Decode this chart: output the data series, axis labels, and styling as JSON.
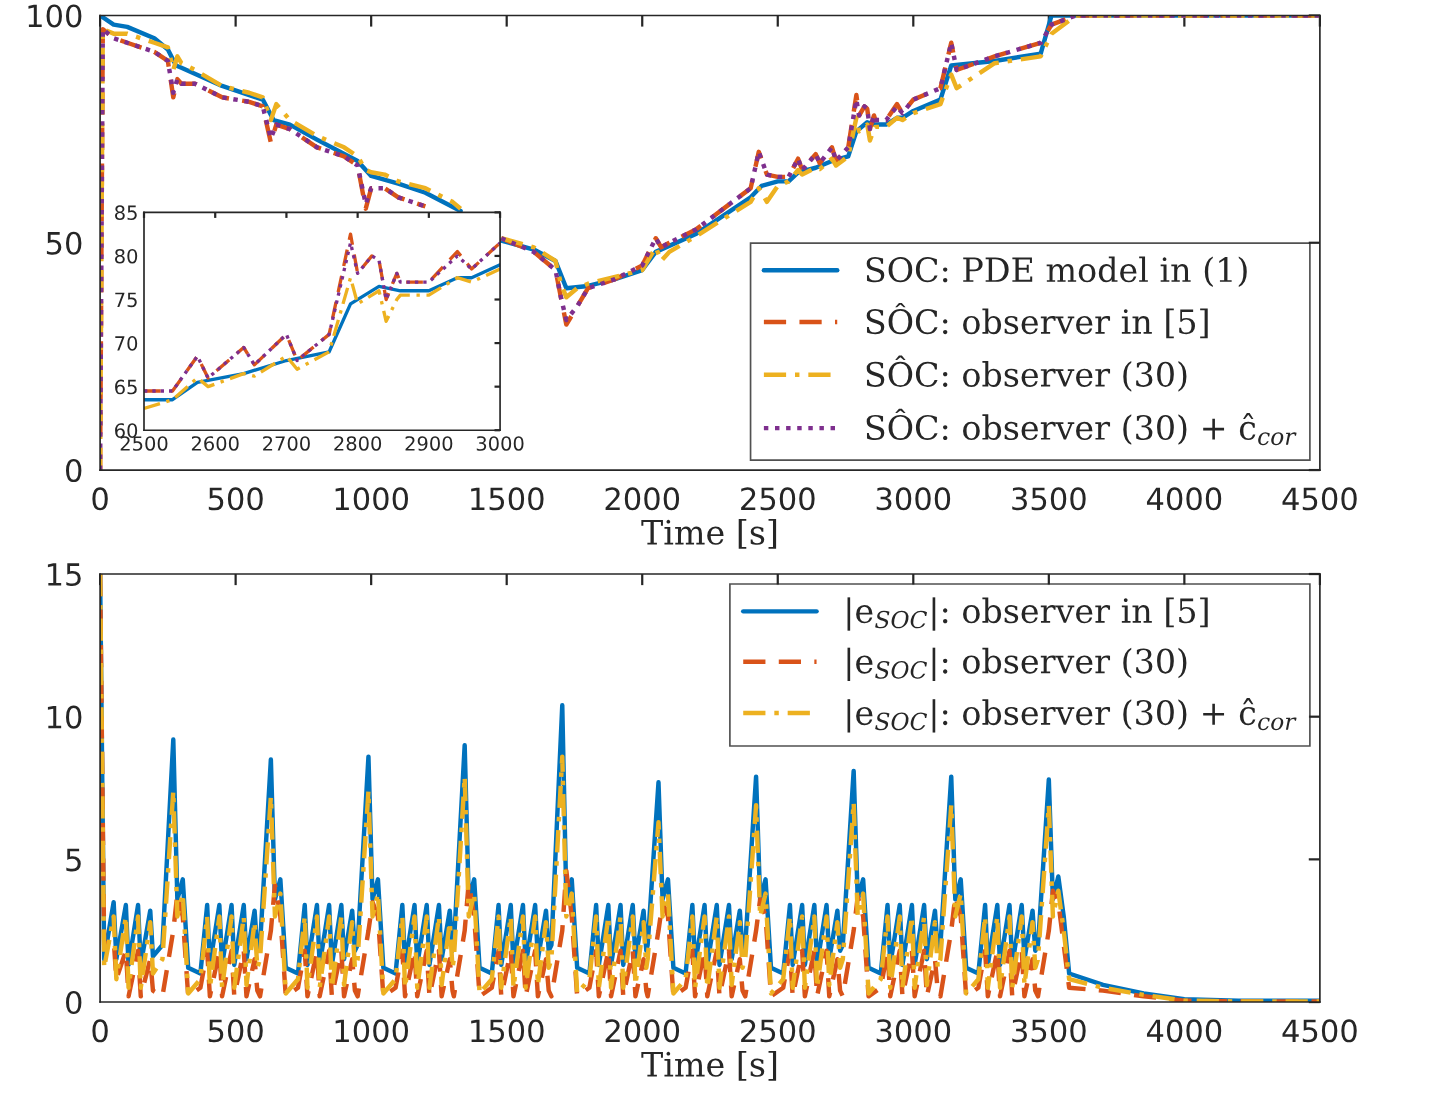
{
  "chart_data": [
    {
      "type": "line",
      "xlabel": "Time [s]",
      "xlim": [
        0,
        4500
      ],
      "ylim": [
        0,
        100
      ],
      "xticks": [
        0,
        500,
        1000,
        1500,
        2000,
        2500,
        3000,
        3500,
        4000,
        4500
      ],
      "yticks": [
        0,
        50,
        100
      ],
      "legend": "lower right",
      "series": [
        {
          "name": "SOC: PDE model in (1)",
          "color": "#0072bd",
          "line_style": "solid",
          "x": [
            0,
            50,
            100,
            200,
            250,
            280,
            300,
            450,
            600,
            640,
            700,
            800,
            950,
            1000,
            1100,
            1200,
            1330,
            1400,
            1480,
            1600,
            1680,
            1720,
            1800,
            1900,
            2000,
            2050,
            2200,
            2400,
            2440,
            2500,
            2540,
            2575,
            2640,
            2700,
            2760,
            2790,
            2830,
            2860,
            2900,
            2940,
            2960,
            3000,
            3100,
            3140,
            3300,
            3470,
            3510,
            4500
          ],
          "values": [
            100,
            98,
            97.5,
            95,
            92.5,
            89,
            88.5,
            84.5,
            81.5,
            77,
            76,
            72.7,
            68,
            64.7,
            63,
            61,
            57,
            null,
            50.5,
            48.5,
            46,
            40,
            40.5,
            42,
            44,
            48,
            52,
            60,
            62.5,
            63.5,
            63.5,
            65.5,
            66.5,
            68,
            69,
            74.5,
            76.5,
            76,
            76,
            77.5,
            77.5,
            79,
            81.5,
            89,
            90,
            91.6,
            100,
            100
          ]
        },
        {
          "name": "SÔC: observer in [5]",
          "color": "#d95319",
          "line_style": "dashed",
          "x": [
            0,
            10,
            50,
            100,
            200,
            250,
            270,
            285,
            300,
            350,
            450,
            550,
            600,
            630,
            650,
            700,
            800,
            900,
            950,
            980,
            1000,
            1050,
            1100,
            1200,
            1300,
            1330,
            1400,
            1480,
            1600,
            1680,
            1700,
            1720,
            1760,
            1800,
            1900,
            2000,
            2050,
            2070,
            2100,
            2200,
            2400,
            2430,
            2460,
            2500,
            2540,
            2575,
            2590,
            2640,
            2655,
            2700,
            2715,
            2760,
            2790,
            2800,
            2820,
            2830,
            2840,
            2855,
            2860,
            2900,
            2940,
            2960,
            3000,
            3100,
            3140,
            3160,
            3300,
            3470,
            3510,
            3600,
            4500
          ],
          "values": [
            0,
            97,
            95,
            94,
            92,
            90,
            82,
            86,
            85,
            85,
            82,
            81,
            80,
            72,
            76,
            75,
            71,
            69,
            67,
            57.5,
            62,
            62,
            60,
            58,
            null,
            null,
            null,
            51,
            48,
            44,
            38,
            32,
            36,
            40,
            42,
            45,
            51,
            49,
            50,
            53,
            62,
            70,
            65,
            64.5,
            64.5,
            68.5,
            66,
            69.5,
            67.5,
            71,
            68,
            71,
            82.5,
            78,
            80,
            79.5,
            75,
            78,
            77,
            77,
            80.5,
            78.5,
            81.5,
            84,
            94,
            88,
            91,
            94,
            98,
            100,
            100
          ]
        },
        {
          "name": "SÔC: observer (30)",
          "color": "#edb120",
          "line_style": "dashdot",
          "x": [
            0,
            10,
            50,
            100,
            200,
            250,
            270,
            285,
            300,
            350,
            450,
            550,
            600,
            630,
            650,
            700,
            800,
            900,
            950,
            980,
            1000,
            1050,
            1100,
            1200,
            1300,
            1330,
            1400,
            1480,
            1600,
            1680,
            1700,
            1720,
            1760,
            1800,
            1900,
            2000,
            2050,
            2070,
            2100,
            2200,
            2400,
            2430,
            2460,
            2500,
            2540,
            2575,
            2590,
            2640,
            2655,
            2700,
            2715,
            2760,
            2790,
            2800,
            2820,
            2830,
            2840,
            2855,
            2860,
            2900,
            2940,
            2960,
            3000,
            3100,
            3140,
            3160,
            3300,
            3470,
            3510,
            3600,
            4500
          ],
          "values": [
            0,
            97,
            96,
            96,
            94,
            93,
            88,
            91,
            89.5,
            88,
            84.5,
            83,
            82,
            77,
            80.5,
            77,
            73.5,
            71,
            69,
            66,
            65.5,
            65,
            63.5,
            62,
            59,
            57.5,
            null,
            51,
            49,
            46,
            41,
            38,
            40,
            41,
            42.5,
            44,
            49,
            46,
            48,
            51.5,
            59,
            62,
            59,
            62.5,
            63.5,
            66,
            65,
            66.5,
            66.2,
            68.5,
            67,
            69,
            77.5,
            74.5,
            75.5,
            76,
            72.5,
            75,
            75.5,
            75.5,
            77.5,
            77,
            78.5,
            80.5,
            87,
            84,
            89.5,
            91,
            96,
            100,
            100
          ]
        },
        {
          "name": "SÔC: observer (30) + ĉ$_{cor}$",
          "color": "#7e2f8e",
          "line_style": "dotted",
          "x": [
            0,
            10,
            50,
            100,
            200,
            250,
            270,
            285,
            300,
            350,
            450,
            550,
            600,
            630,
            650,
            700,
            800,
            900,
            950,
            980,
            1000,
            1050,
            1100,
            1200,
            1300,
            1330,
            1400,
            1480,
            1600,
            1680,
            1700,
            1720,
            1760,
            1800,
            1900,
            2000,
            2050,
            2070,
            2100,
            2200,
            2400,
            2430,
            2460,
            2500,
            2540,
            2575,
            2590,
            2640,
            2655,
            2700,
            2715,
            2760,
            2790,
            2800,
            2820,
            2830,
            2840,
            2855,
            2860,
            2900,
            2940,
            2960,
            3000,
            3100,
            3140,
            3160,
            3300,
            3470,
            3510,
            3600,
            4500
          ],
          "values": [
            0,
            97,
            95,
            94,
            92,
            90,
            83,
            86,
            85,
            85,
            82,
            81,
            80,
            73,
            76,
            75,
            71,
            69,
            67,
            58.5,
            62,
            62,
            60,
            58,
            null,
            null,
            null,
            51,
            48,
            44,
            38,
            33,
            36,
            40,
            42,
            45,
            51,
            49,
            50,
            53,
            62,
            70,
            65,
            64.5,
            64.5,
            68.5,
            66,
            69.5,
            67.5,
            71,
            68,
            71,
            81.5,
            78,
            80,
            79.5,
            75,
            78,
            77,
            77,
            80,
            78.5,
            81.5,
            84,
            94,
            88,
            91,
            94,
            98,
            100,
            100
          ]
        }
      ]
    },
    {
      "type": "line",
      "xlim": [
        2500,
        3000
      ],
      "ylim": [
        60,
        85
      ],
      "xticks": [
        2500,
        2600,
        2700,
        2800,
        2900,
        3000
      ],
      "yticks": [
        60,
        65,
        70,
        75,
        80,
        85
      ],
      "series": [
        {
          "color": "#0072bd",
          "line_style": "solid",
          "x": [
            2500,
            2540,
            2575,
            2640,
            2700,
            2760,
            2790,
            2830,
            2860,
            2900,
            2940,
            2960,
            3000
          ],
          "values": [
            63.5,
            63.5,
            65.5,
            66.5,
            68,
            69,
            74.5,
            76.5,
            76,
            76,
            77.5,
            77.5,
            79
          ]
        },
        {
          "color": "#d95319",
          "line_style": "dashed",
          "x": [
            2500,
            2540,
            2575,
            2590,
            2640,
            2655,
            2700,
            2715,
            2760,
            2790,
            2800,
            2820,
            2830,
            2840,
            2855,
            2860,
            2900,
            2940,
            2960,
            3000
          ],
          "values": [
            64.5,
            64.5,
            68.5,
            66,
            69.5,
            67.5,
            71,
            68,
            71,
            82.5,
            78,
            80,
            79.5,
            75,
            78,
            77,
            77,
            80.5,
            78.5,
            81.5
          ]
        },
        {
          "color": "#edb120",
          "line_style": "dashdot",
          "x": [
            2500,
            2540,
            2575,
            2590,
            2640,
            2655,
            2700,
            2715,
            2760,
            2790,
            2800,
            2820,
            2830,
            2840,
            2855,
            2860,
            2900,
            2940,
            2960,
            3000
          ],
          "values": [
            62.5,
            63.5,
            66,
            65,
            66.5,
            66.2,
            68.5,
            67,
            69,
            77.5,
            74.5,
            75.5,
            76,
            72.5,
            75,
            75.5,
            75.5,
            77.5,
            77,
            78.5
          ]
        },
        {
          "color": "#7e2f8e",
          "line_style": "dotted",
          "x": [
            2500,
            2540,
            2575,
            2590,
            2640,
            2655,
            2700,
            2715,
            2760,
            2790,
            2800,
            2820,
            2830,
            2840,
            2855,
            2860,
            2900,
            2940,
            2960,
            3000
          ],
          "values": [
            64.5,
            64.5,
            68.5,
            66,
            69.5,
            67.5,
            71,
            68,
            71,
            81.5,
            78,
            80,
            79.5,
            75,
            78,
            77,
            77,
            80,
            78.5,
            81.5
          ]
        }
      ]
    },
    {
      "type": "line",
      "xlabel": "Time [s]",
      "xlim": [
        0,
        4500
      ],
      "ylim": [
        0,
        15
      ],
      "xticks": [
        0,
        500,
        1000,
        1500,
        2000,
        2500,
        3000,
        3500,
        4000,
        4500
      ],
      "yticks": [
        0,
        5,
        10,
        15
      ],
      "legend": "upper right",
      "x": [
        0,
        15,
        50,
        60,
        95,
        105,
        140,
        150,
        185,
        195,
        230,
        270,
        285,
        305,
        325,
        370,
        395,
        405,
        440,
        450,
        485,
        495,
        530,
        540,
        570,
        580,
        590,
        630,
        645,
        665,
        685,
        730,
        755,
        765,
        800,
        810,
        845,
        855,
        890,
        900,
        930,
        940,
        950,
        990,
        1005,
        1025,
        1045,
        1090,
        1115,
        1125,
        1160,
        1170,
        1205,
        1215,
        1250,
        1260,
        1290,
        1300,
        1305,
        1345,
        1360,
        1380,
        1400,
        1445,
        1470,
        1480,
        1515,
        1525,
        1560,
        1570,
        1605,
        1615,
        1645,
        1655,
        1665,
        1705,
        1720,
        1740,
        1760,
        1805,
        1830,
        1840,
        1875,
        1885,
        1920,
        1930,
        1965,
        1975,
        2005,
        2015,
        2020,
        2060,
        2075,
        2095,
        2115,
        2160,
        2185,
        2195,
        2230,
        2240,
        2275,
        2285,
        2320,
        2330,
        2360,
        2370,
        2380,
        2420,
        2435,
        2455,
        2475,
        2520,
        2545,
        2555,
        2590,
        2600,
        2635,
        2645,
        2680,
        2690,
        2720,
        2730,
        2740,
        2780,
        2795,
        2815,
        2835,
        2880,
        2905,
        2915,
        2950,
        2960,
        2995,
        3005,
        3040,
        3050,
        3080,
        3090,
        3100,
        3140,
        3155,
        3175,
        3195,
        3240,
        3265,
        3275,
        3310,
        3320,
        3355,
        3365,
        3400,
        3410,
        3440,
        3450,
        3460,
        3500,
        3515,
        3535,
        3555,
        3575,
        3700,
        3850,
        4000,
        4200,
        4500
      ],
      "series": [
        {
          "name": "|e$_{SOC}$|: observer in [5]",
          "color": "#0072bd",
          "line_style": "solid",
          "values": [
            15,
            1.5,
            3.5,
            1.5,
            3.4,
            1.3,
            3.4,
            1.3,
            3.2,
            1.6,
            2.0,
            9.2,
            3.6,
            4.3,
            1.2,
            1.0,
            3.4,
            1.3,
            3.4,
            1.3,
            3.4,
            1.3,
            3.4,
            1.5,
            3.2,
            1.8,
            2.0,
            8.5,
            3.6,
            4.3,
            1.2,
            1.0,
            3.4,
            1.3,
            3.4,
            1.3,
            3.4,
            1.3,
            3.4,
            1.5,
            3.2,
            1.8,
            2.0,
            8.6,
            3.6,
            4.3,
            1.2,
            1.0,
            3.4,
            1.3,
            3.4,
            1.3,
            3.4,
            1.3,
            3.4,
            1.5,
            3.2,
            1.8,
            2.0,
            9.0,
            3.6,
            4.3,
            1.2,
            1.0,
            3.4,
            1.3,
            3.4,
            1.3,
            3.4,
            1.3,
            3.4,
            1.5,
            3.2,
            1.8,
            2.0,
            10.4,
            3.6,
            4.3,
            1.2,
            1.0,
            3.4,
            1.3,
            3.4,
            1.3,
            3.4,
            1.3,
            3.4,
            1.5,
            3.2,
            1.8,
            2.0,
            7.7,
            3.6,
            4.3,
            1.2,
            1.0,
            3.4,
            1.3,
            3.4,
            1.3,
            3.4,
            1.3,
            3.4,
            1.5,
            3.2,
            1.8,
            2.0,
            7.9,
            3.6,
            4.3,
            1.2,
            1.0,
            3.4,
            1.3,
            3.4,
            1.3,
            3.4,
            1.3,
            3.4,
            1.5,
            3.2,
            1.8,
            2.0,
            8.1,
            3.6,
            4.3,
            1.2,
            1.0,
            3.4,
            1.3,
            3.4,
            1.3,
            3.4,
            1.3,
            3.4,
            1.5,
            3.2,
            1.8,
            2.0,
            7.9,
            3.6,
            4.3,
            1.2,
            1.0,
            3.4,
            1.3,
            3.4,
            1.3,
            3.4,
            1.3,
            3.4,
            1.5,
            3.2,
            1.8,
            2.0,
            7.8,
            3.6,
            4.4,
            3.0,
            1.0,
            0.6,
            0.3,
            0.1,
            0.05,
            0.05
          ]
        },
        {
          "name": "|e$_{SOC}$|: observer (30)",
          "color": "#d95319",
          "line_style": "dashed",
          "values": [
            15,
            2.0,
            2.2,
            0.8,
            1.8,
            0.2,
            1.8,
            0.2,
            1.5,
            0.4,
            0.2,
            2.5,
            3.8,
            3.0,
            0.2,
            0.5,
            1.8,
            0.2,
            1.8,
            0.2,
            1.8,
            0.2,
            1.8,
            0.2,
            1.5,
            0.4,
            0.2,
            2.5,
            4.1,
            3.0,
            0.2,
            0.5,
            1.8,
            0.2,
            1.8,
            0.2,
            1.8,
            0.2,
            1.8,
            0.2,
            1.5,
            0.4,
            0.2,
            2.5,
            3.5,
            3.0,
            0.2,
            0.5,
            1.8,
            0.2,
            1.8,
            0.2,
            1.8,
            0.2,
            1.8,
            0.2,
            1.5,
            0.4,
            0.2,
            2.5,
            4.2,
            3.0,
            0.2,
            0.5,
            1.8,
            0.2,
            1.8,
            0.2,
            1.8,
            0.2,
            1.8,
            0.2,
            1.5,
            0.4,
            0.2,
            2.5,
            4.6,
            3.0,
            0.2,
            0.5,
            1.8,
            0.2,
            1.8,
            0.2,
            1.8,
            0.2,
            1.8,
            0.2,
            1.5,
            0.4,
            0.2,
            2.5,
            3.5,
            3.0,
            0.2,
            0.5,
            1.8,
            0.2,
            1.8,
            0.2,
            1.8,
            0.2,
            1.8,
            0.2,
            1.5,
            0.4,
            0.2,
            2.5,
            3.6,
            3.0,
            0.2,
            0.5,
            1.8,
            0.2,
            1.8,
            0.2,
            1.8,
            0.2,
            1.8,
            0.2,
            1.5,
            0.4,
            0.2,
            2.5,
            3.7,
            3.0,
            0.2,
            0.5,
            1.8,
            0.2,
            1.8,
            0.2,
            1.8,
            0.2,
            1.8,
            0.2,
            1.5,
            0.4,
            0.2,
            2.5,
            3.7,
            3.0,
            0.2,
            0.5,
            1.8,
            0.2,
            1.8,
            0.2,
            1.8,
            0.2,
            1.8,
            0.2,
            1.5,
            0.4,
            0.2,
            2.5,
            3.9,
            3.5,
            2.0,
            0.5,
            0.4,
            0.2,
            0.05,
            0.02,
            0.02
          ]
        },
        {
          "name": "|e$_{SOC}$|: observer (30) + ĉ$_{cor}$",
          "color": "#edb120",
          "line_style": "dashdot",
          "values": [
            15,
            1.2,
            3.0,
            0.8,
            3.0,
            0.5,
            3.0,
            0.5,
            2.8,
            1.0,
            1.5,
            7.4,
            3.0,
            3.8,
            0.3,
            0.8,
            3.0,
            0.5,
            3.0,
            0.5,
            3.0,
            0.5,
            3.0,
            0.6,
            2.8,
            1.2,
            1.5,
            7.2,
            3.0,
            3.8,
            0.3,
            0.8,
            3.0,
            0.5,
            3.0,
            0.5,
            3.0,
            0.5,
            3.0,
            0.6,
            2.8,
            1.2,
            1.5,
            7.4,
            3.0,
            3.8,
            0.3,
            0.8,
            3.0,
            0.5,
            3.0,
            0.5,
            3.0,
            0.5,
            3.0,
            0.6,
            2.8,
            1.2,
            1.5,
            7.9,
            3.0,
            3.8,
            0.3,
            0.8,
            3.0,
            0.5,
            3.0,
            0.5,
            3.0,
            0.5,
            3.0,
            0.6,
            2.8,
            1.2,
            1.5,
            8.6,
            3.0,
            3.8,
            0.3,
            0.8,
            3.0,
            0.5,
            3.0,
            0.5,
            3.0,
            0.5,
            3.0,
            0.6,
            2.8,
            1.2,
            1.5,
            6.3,
            3.0,
            3.8,
            0.3,
            0.8,
            3.0,
            0.5,
            3.0,
            0.5,
            3.0,
            0.5,
            3.0,
            0.6,
            2.8,
            1.2,
            1.5,
            6.9,
            3.0,
            3.8,
            0.3,
            0.8,
            3.0,
            0.5,
            3.0,
            0.5,
            3.0,
            0.5,
            3.0,
            0.6,
            2.8,
            1.2,
            1.5,
            7.0,
            3.0,
            3.8,
            0.3,
            0.8,
            3.0,
            0.5,
            3.0,
            0.5,
            3.0,
            0.5,
            3.0,
            0.6,
            2.8,
            1.2,
            1.5,
            6.9,
            3.0,
            3.8,
            0.3,
            0.8,
            3.0,
            0.5,
            3.0,
            0.5,
            3.0,
            0.5,
            3.0,
            0.6,
            2.8,
            1.2,
            1.5,
            6.9,
            3.0,
            3.9,
            2.5,
            0.8,
            0.5,
            0.25,
            0.05,
            0.02,
            0.02
          ]
        }
      ]
    }
  ]
}
